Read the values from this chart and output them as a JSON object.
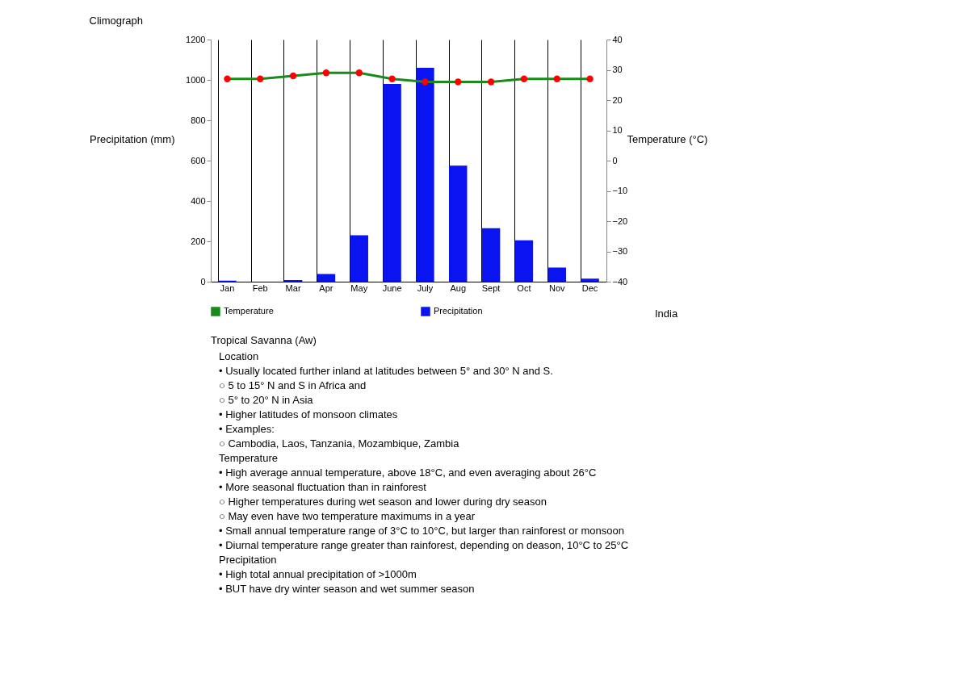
{
  "chart_data": [
    {
      "type": "bar",
      "title": "Climograph",
      "ylabel": "Precipitation (mm)",
      "y2label": "Temperature (°C)",
      "categories": [
        "Jan",
        "Feb",
        "Mar",
        "Apr",
        "May",
        "June",
        "July",
        "Aug",
        "Sept",
        "Oct",
        "Nov",
        "Dec"
      ],
      "series": [
        {
          "name": "Temperature",
          "type": "line",
          "axis": "y2",
          "color": "#1a8a1a",
          "colors": [
            "#ff0000",
            "#ff0000",
            "#ff0000",
            "#ff0000",
            "#ff0000",
            "#ff0000",
            "#ff0000",
            "#ff0000",
            "#ff0000",
            "#ff0000",
            "#ff0000",
            "#ff0000"
          ],
          "values": [
            27,
            27,
            28,
            29,
            29,
            27,
            26,
            26,
            26,
            27,
            27,
            27
          ]
        },
        {
          "name": "Precipitation",
          "type": "bar",
          "color": "#0a14f0",
          "values": [
            5,
            0,
            8,
            38,
            230,
            980,
            1060,
            575,
            265,
            205,
            70,
            15
          ]
        }
      ],
      "ylim": [
        0,
        1200
      ],
      "yticks": [
        0,
        200,
        400,
        600,
        800,
        1000,
        1200
      ],
      "y2lim": [
        -40,
        40
      ],
      "y2ticks": [
        -40,
        -30,
        -20,
        -10,
        0,
        10,
        20,
        30,
        40
      ],
      "grid": "x",
      "legend": "bottom",
      "marker": "circle",
      "line_style": "solid",
      "annotations": [
        "India"
      ]
    },
    {
      "type": "other",
      "title": "Tropical Savanna (Aw)",
      "annotations": [
        "Location",
        "• Usually located further inland at latitudes between 5° and 30° N and S.",
        "    ○ 5 to 15° N and S in Africa and",
        "    ○ 5° to 20° N in Asia",
        "• Higher latitudes of monsoon climates",
        "• Examples:",
        "    ○ Cambodia, Laos, Tanzania, Mozambique, Zambia",
        "Temperature",
        "• High average annual temperature, above 18°C, and even averaging about 26°C",
        "• More seasonal fluctuation than in rainforest",
        "    ○ Higher temperatures during wet season and lower during dry season",
        "    ○ May even have two temperature maximums in a year",
        "• Small annual temperature range of 3°C to 10°C, but larger than rainforest or monsoon",
        "• Diurnal temperature range greater than rainforest, depending on deason, 10°C to 25°C",
        "Precipitation",
        "• High total annual precipitation of >1000m",
        "• BUT have dry winter season and wet summer season"
      ]
    }
  ]
}
